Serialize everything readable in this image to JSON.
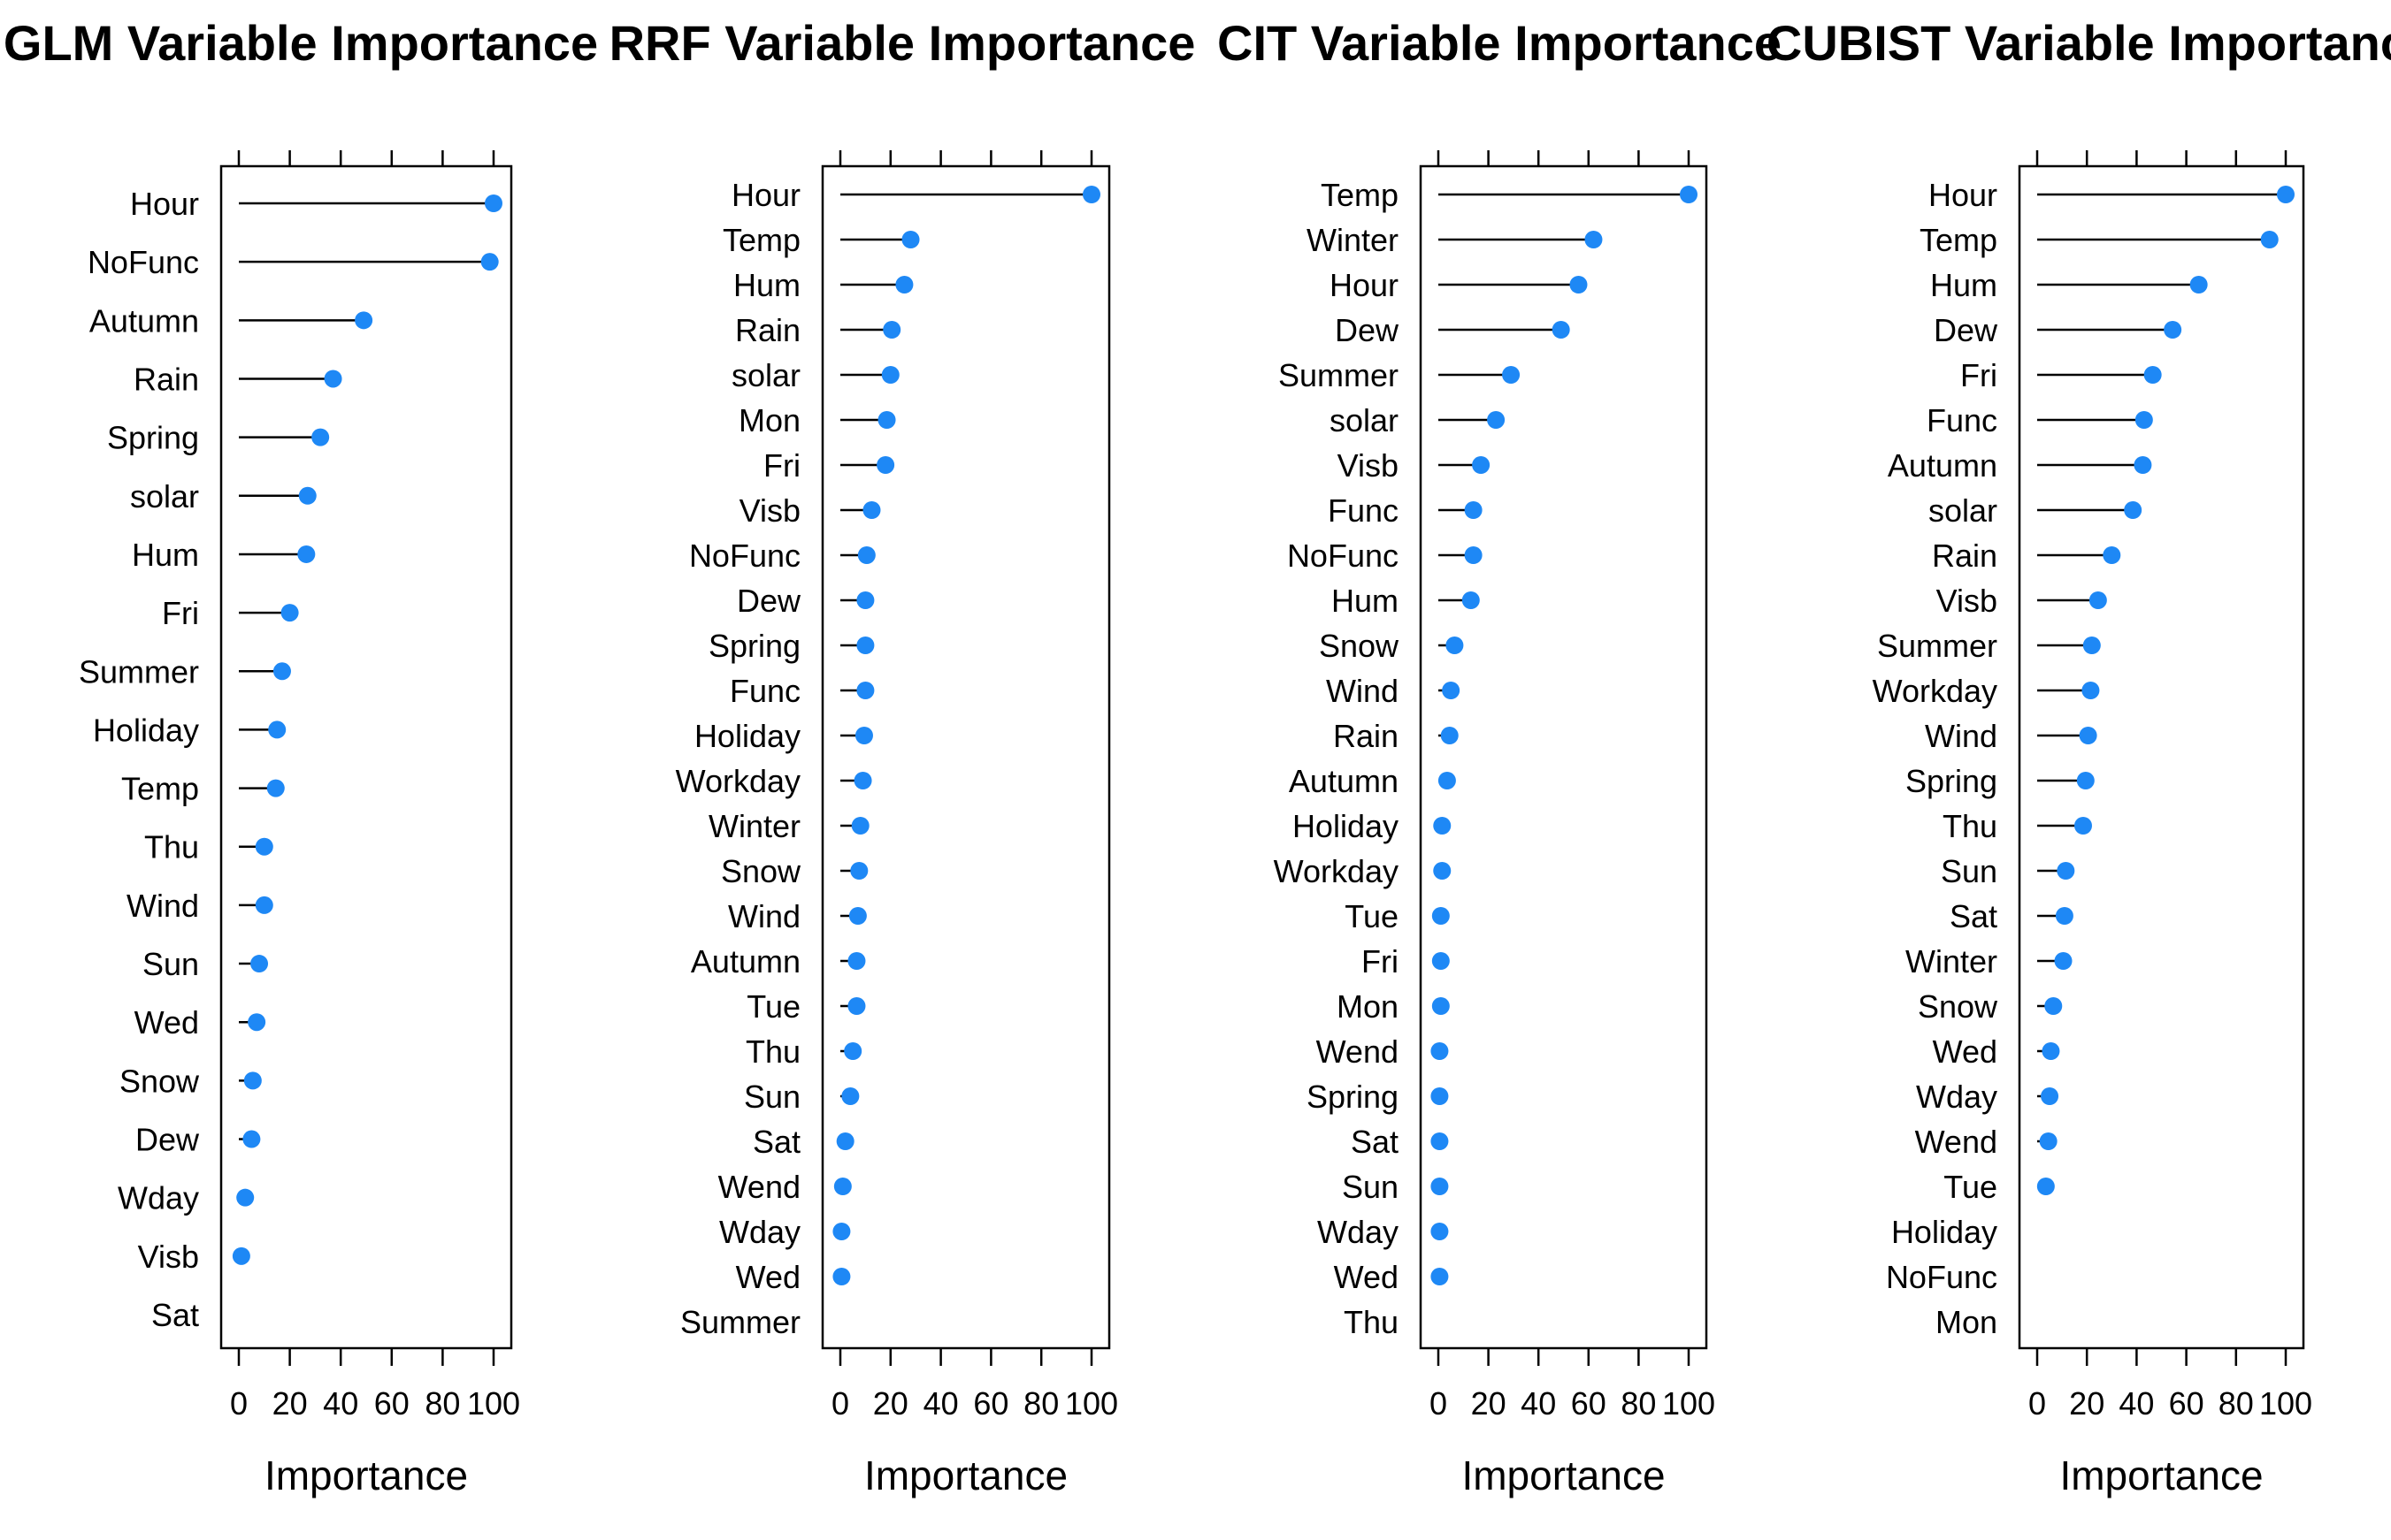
{
  "marker_color": "#1E88F5",
  "chart_data": [
    {
      "type": "dot",
      "title": "GLM Variable Importance",
      "xlabel": "Importance",
      "xlim": [
        0,
        100
      ],
      "xticks": [
        0,
        20,
        40,
        60,
        80,
        100
      ],
      "grid": false,
      "categories": [
        "Hour",
        "NoFunc",
        "Autumn",
        "Rain",
        "Spring",
        "solar",
        "Hum",
        "Fri",
        "Summer",
        "Holiday",
        "Temp",
        "Thu",
        "Wind",
        "Sun",
        "Wed",
        "Snow",
        "Dew",
        "Wday",
        "Visb",
        "Sat"
      ],
      "values": [
        100,
        98.5,
        49,
        37,
        32,
        27,
        26.5,
        20,
        17,
        15,
        14.5,
        10,
        10,
        8,
        7,
        5.5,
        5,
        2.5,
        1,
        0
      ]
    },
    {
      "type": "dot",
      "title": "RRF Variable Importance",
      "xlabel": "Importance",
      "xlim": [
        0,
        100
      ],
      "xticks": [
        0,
        20,
        40,
        60,
        80,
        100
      ],
      "grid": false,
      "categories": [
        "Hour",
        "Temp",
        "Hum",
        "Rain",
        "solar",
        "Mon",
        "Fri",
        "Visb",
        "NoFunc",
        "Dew",
        "Spring",
        "Func",
        "Holiday",
        "Workday",
        "Winter",
        "Snow",
        "Wind",
        "Autumn",
        "Tue",
        "Thu",
        "Sun",
        "Sat",
        "Wend",
        "Wday",
        "Wed",
        "Summer"
      ],
      "values": [
        100,
        28,
        25.5,
        20.5,
        20,
        18.5,
        18,
        12.5,
        10.5,
        10,
        10,
        10,
        9.5,
        9,
        8,
        7.5,
        7,
        6.5,
        6.5,
        5,
        4,
        2,
        1,
        0.5,
        0.5,
        0
      ]
    },
    {
      "type": "dot",
      "title": "CIT Variable Importance",
      "xlabel": "Importance",
      "xlim": [
        0,
        100
      ],
      "xticks": [
        0,
        20,
        40,
        60,
        80,
        100
      ],
      "grid": false,
      "categories": [
        "Temp",
        "Winter",
        "Hour",
        "Dew",
        "Summer",
        "solar",
        "Visb",
        "Func",
        "NoFunc",
        "Hum",
        "Snow",
        "Wind",
        "Rain",
        "Autumn",
        "Holiday",
        "Workday",
        "Tue",
        "Fri",
        "Mon",
        "Wend",
        "Spring",
        "Sat",
        "Sun",
        "Wday",
        "Wed",
        "Thu"
      ],
      "values": [
        100,
        62,
        56,
        49,
        29,
        23,
        17,
        14,
        14,
        13,
        6.5,
        5,
        4.5,
        3.5,
        1.5,
        1.5,
        1,
        1,
        1,
        0.5,
        0.5,
        0.5,
        0.5,
        0.5,
        0.5,
        0
      ]
    },
    {
      "type": "dot",
      "title": "CUBIST Variable Importance",
      "xlabel": "Importance",
      "xlim": [
        0,
        100
      ],
      "xticks": [
        0,
        20,
        40,
        60,
        80,
        100
      ],
      "grid": false,
      "categories": [
        "Hour",
        "Temp",
        "Hum",
        "Dew",
        "Fri",
        "Func",
        "Autumn",
        "solar",
        "Rain",
        "Visb",
        "Summer",
        "Workday",
        "Wind",
        "Spring",
        "Thu",
        "Sun",
        "Sat",
        "Winter",
        "Snow",
        "Wed",
        "Wday",
        "Wend",
        "Tue",
        "Holiday",
        "NoFunc",
        "Mon"
      ],
      "values": [
        100,
        93.5,
        65,
        54.5,
        46.5,
        43,
        42.5,
        38.5,
        30,
        24.5,
        22,
        21.5,
        20.5,
        19.5,
        18.5,
        11.5,
        11,
        10.5,
        6.5,
        5.5,
        5,
        4.5,
        3.5,
        0,
        0,
        0
      ]
    }
  ]
}
